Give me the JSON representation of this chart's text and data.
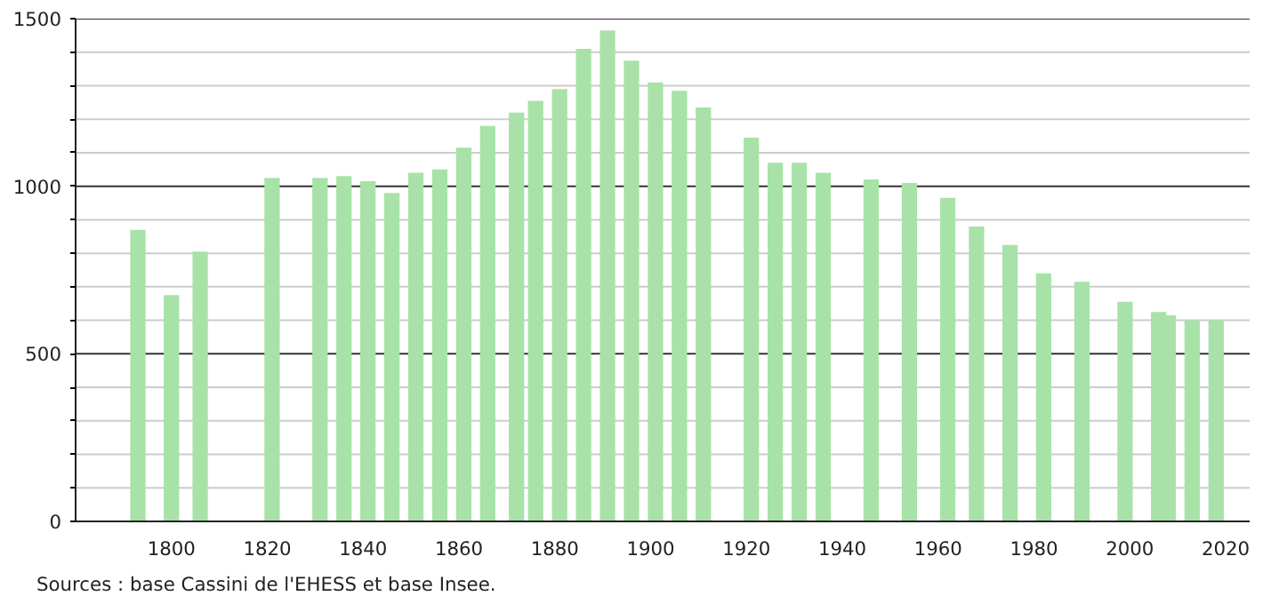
{
  "chart_data": {
    "type": "bar",
    "x": [
      1793,
      1800,
      1806,
      1821,
      1831,
      1836,
      1841,
      1846,
      1851,
      1856,
      1861,
      1866,
      1872,
      1876,
      1881,
      1886,
      1891,
      1896,
      1901,
      1906,
      1911,
      1921,
      1926,
      1931,
      1936,
      1946,
      1954,
      1962,
      1968,
      1975,
      1982,
      1990,
      1999,
      2006,
      2008,
      2013,
      2018
    ],
    "values": [
      870,
      675,
      805,
      1025,
      1025,
      1030,
      1015,
      980,
      1040,
      1050,
      1115,
      1180,
      1220,
      1255,
      1290,
      1410,
      1465,
      1375,
      1310,
      1285,
      1235,
      1145,
      1070,
      1070,
      1040,
      1020,
      1010,
      965,
      880,
      825,
      740,
      715,
      655,
      625,
      615,
      600,
      600
    ],
    "color": "#a8e2a8",
    "xlim": [
      1780,
      2025
    ],
    "xticks": [
      1800,
      1820,
      1840,
      1860,
      1880,
      1900,
      1920,
      1940,
      1960,
      1980,
      2000,
      2020
    ],
    "ylim": [
      0,
      1500
    ],
    "yticks": [
      0,
      {
        "value": 100,
        "label": null
      },
      {
        "value": 200,
        "label": null
      },
      {
        "value": 300,
        "label": null
      },
      {
        "value": 400,
        "label": null
      },
      500,
      {
        "value": 600,
        "label": null
      },
      {
        "value": 700,
        "label": null
      },
      {
        "value": 800,
        "label": null
      },
      {
        "value": 900,
        "label": null
      },
      1000,
      {
        "value": 1100,
        "label": null
      },
      {
        "value": 1200,
        "label": null
      },
      {
        "value": 1300,
        "label": null
      },
      {
        "value": 1400,
        "label": null
      },
      1500
    ],
    "grid": "y",
    "annotations": [
      "Sources : base Cassini de l'EHESS et base Insee."
    ]
  }
}
